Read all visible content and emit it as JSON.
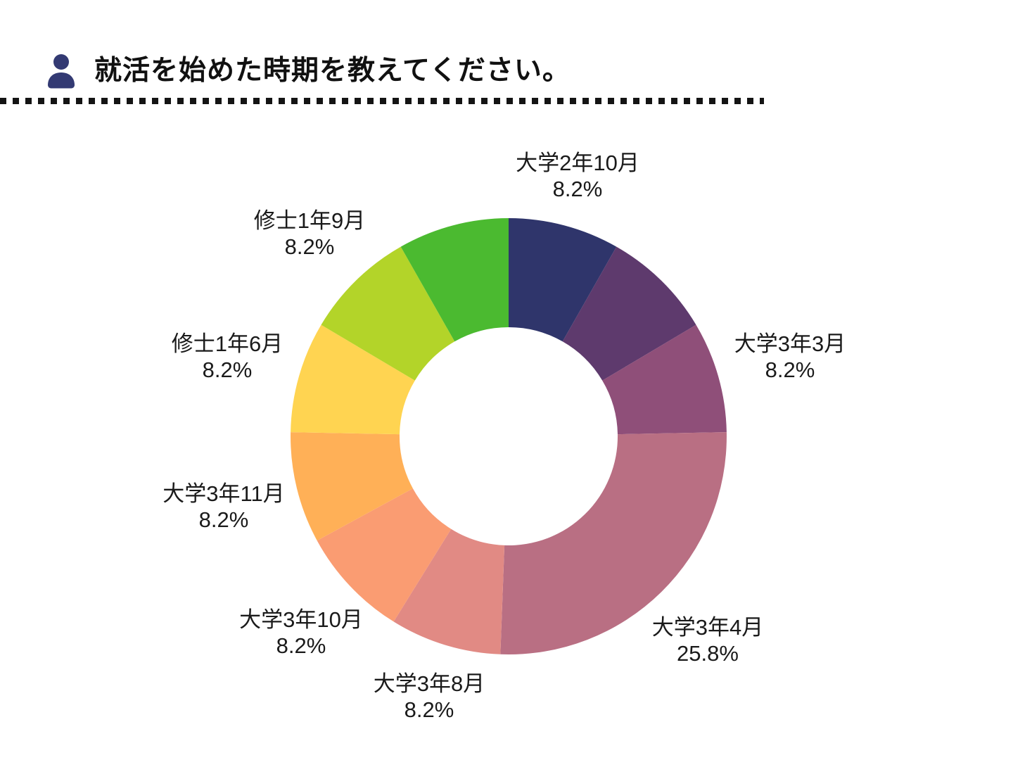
{
  "header": {
    "title": "就活を始めた時期を教えてください。",
    "icon": "person-icon",
    "icon_color": "#333a73",
    "divider_color": "#141414"
  },
  "chart_data": {
    "type": "pie",
    "subtype": "donut",
    "title": "就活を始めた時期を教えてください。",
    "unit": "%",
    "start_angle_deg": 0,
    "clockwise": true,
    "inner_radius_ratio": 0.5,
    "label_color": "#1a1a1a",
    "segments": [
      {
        "label": "大学2年10月",
        "value": 8.2,
        "display": "8.2%",
        "color": "#2f356b",
        "label_visible": true
      },
      {
        "label": "",
        "value": 8.2,
        "display": "",
        "color": "#5e3a6d",
        "label_visible": false
      },
      {
        "label": "大学3年3月",
        "value": 8.2,
        "display": "8.2%",
        "color": "#8f4f79",
        "label_visible": true
      },
      {
        "label": "大学3年4月",
        "value": 25.8,
        "display": "25.8%",
        "color": "#b96f83",
        "label_visible": true
      },
      {
        "label": "大学3年8月",
        "value": 8.2,
        "display": "8.2%",
        "color": "#e18a84",
        "label_visible": true
      },
      {
        "label": "大学3年10月",
        "value": 8.2,
        "display": "8.2%",
        "color": "#fa9c72",
        "label_visible": true
      },
      {
        "label": "大学3年11月",
        "value": 8.2,
        "display": "8.2%",
        "color": "#ffb057",
        "label_visible": true
      },
      {
        "label": "修士1年6月",
        "value": 8.2,
        "display": "8.2%",
        "color": "#ffd451",
        "label_visible": true
      },
      {
        "label": "修士1年9月",
        "value": 8.2,
        "display": "8.2%",
        "color": "#b3d429",
        "label_visible": true
      },
      {
        "label": "",
        "value": 8.2,
        "display": "",
        "color": "#4bba30",
        "label_visible": false
      }
    ]
  }
}
